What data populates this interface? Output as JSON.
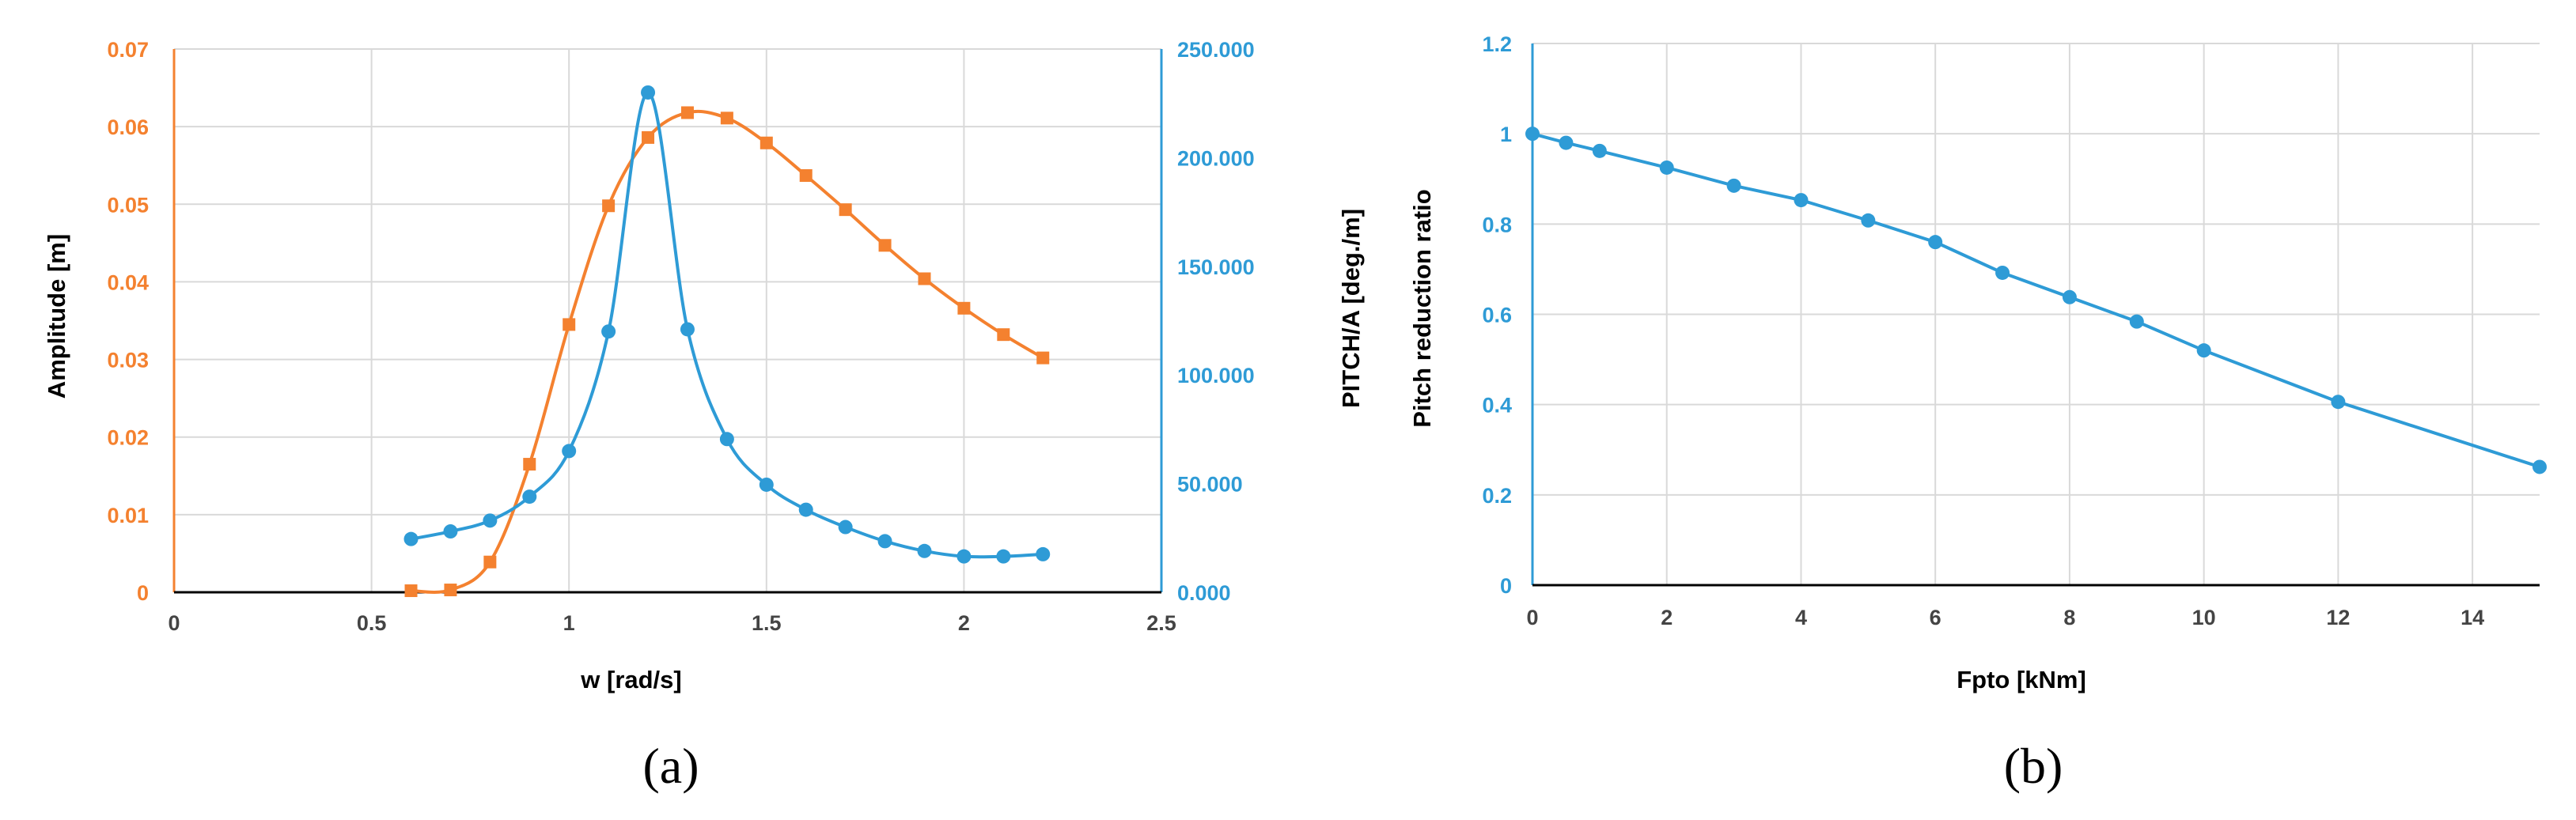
{
  "colors": {
    "orange": "#F4812F",
    "blue": "#2E9BD6",
    "grid": "#D9D9D9",
    "axis": "#000000",
    "tick_gray": "#444444"
  },
  "panels": {
    "a": {
      "label": "(a)"
    },
    "b": {
      "label": "(b)"
    }
  },
  "chart_data": [
    {
      "id": "a",
      "type": "line",
      "xlabel": "w [rad/s]",
      "ylabel": "Amplitude [m]",
      "y2label": "PITCH/A [deg./m]",
      "xlim": [
        0,
        2.5
      ],
      "ylim": [
        0,
        0.07
      ],
      "y2lim": [
        0,
        250
      ],
      "xticks": [
        "0",
        "0.5",
        "1",
        "1.5",
        "2",
        "2.5"
      ],
      "yticks": [
        "0",
        "0.01",
        "0.02",
        "0.03",
        "0.04",
        "0.05",
        "0.06",
        "0.07"
      ],
      "y2ticks": [
        "0.000",
        "50.000",
        "100.000",
        "150.000",
        "200.000",
        "250.000"
      ],
      "grid": true,
      "series": [
        {
          "axis": "left",
          "marker": "square",
          "color": "#F4812F",
          "x": [
            0.6,
            0.7,
            0.8,
            0.9,
            1.0,
            1.1,
            1.2,
            1.3,
            1.4,
            1.5,
            1.6,
            1.7,
            1.8,
            1.9,
            2.0,
            2.1,
            2.2
          ],
          "y": [
            0.0002,
            0.0003,
            0.0039,
            0.0165,
            0.0345,
            0.0498,
            0.0586,
            0.0618,
            0.0611,
            0.0579,
            0.0537,
            0.0493,
            0.0447,
            0.0404,
            0.0366,
            0.0332,
            0.0302
          ]
        },
        {
          "axis": "right",
          "marker": "circle",
          "color": "#2E9BD6",
          "x": [
            0.6,
            0.7,
            0.8,
            0.9,
            1.0,
            1.1,
            1.2,
            1.3,
            1.4,
            1.5,
            1.6,
            1.7,
            1.8,
            1.9,
            2.0,
            2.1,
            2.2
          ],
          "y": [
            24.5,
            28.0,
            33.0,
            44.0,
            65.0,
            120.0,
            230.0,
            121.0,
            70.5,
            49.5,
            38.0,
            30.0,
            23.5,
            19.0,
            16.5,
            16.5,
            17.5
          ]
        }
      ]
    },
    {
      "id": "b",
      "type": "line",
      "xlabel": "Fpto [kNm]",
      "ylabel": "Pitch reduction ratio",
      "xlim": [
        0,
        15
      ],
      "ylim": [
        0,
        1.2
      ],
      "xticks": [
        "0",
        "2",
        "4",
        "6",
        "8",
        "10",
        "12",
        "14"
      ],
      "yticks": [
        "0",
        "0.2",
        "0.4",
        "0.6",
        "0.8",
        "1",
        "1.2"
      ],
      "grid": true,
      "series": [
        {
          "marker": "circle",
          "color": "#2E9BD6",
          "x": [
            0,
            0.5,
            1,
            2,
            3,
            4,
            5,
            6,
            7,
            8,
            9,
            10,
            12,
            15
          ],
          "y": [
            1.0,
            0.98,
            0.962,
            0.925,
            0.885,
            0.853,
            0.808,
            0.76,
            0.692,
            0.638,
            0.584,
            0.52,
            0.406,
            0.262
          ]
        }
      ]
    }
  ]
}
